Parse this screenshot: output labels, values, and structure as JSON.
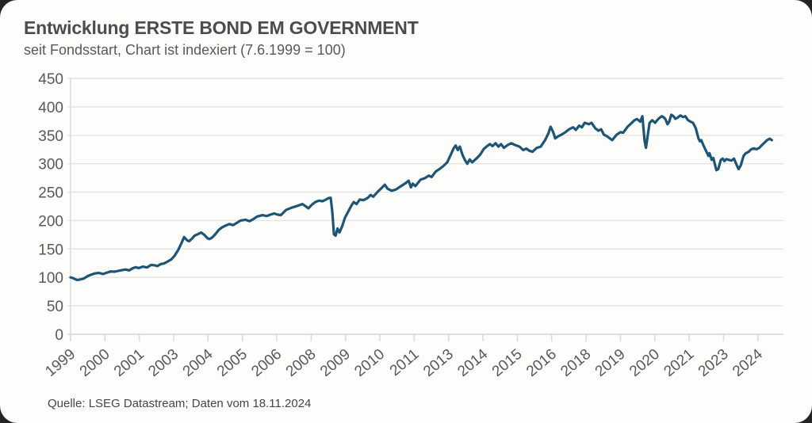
{
  "page": {
    "background": "#242424"
  },
  "card": {
    "background": "#fdfdfc"
  },
  "chart": {
    "title": "Entwicklung ERSTE BOND EM GOVERNMENT",
    "subtitle": "seit Fondsstart, Chart ist indexiert (7.6.1999 = 100)",
    "source": "Quelle: LSEG Datastream; Daten vom 18.11.2024"
  },
  "chart_data": {
    "type": "line",
    "title": "Entwicklung ERSTE BOND EM GOVERNMENT",
    "subtitle": "seit Fondsstart, Chart ist indexiert (7.6.1999 = 100)",
    "source": "Quelle: LSEG Datastream; Daten vom 18.11.2024",
    "xlabel": "",
    "ylabel": "",
    "xlim": [
      1999.42,
      2025.35
    ],
    "ylim": [
      0,
      450
    ],
    "grid": "horizontal",
    "legend": "none",
    "y_ticks": [
      0,
      50,
      100,
      150,
      200,
      250,
      300,
      350,
      400,
      450
    ],
    "x_ticks": [
      {
        "label": "1999",
        "x": 1999.42
      },
      {
        "label": "2000",
        "x": 2000.67
      },
      {
        "label": "2001",
        "x": 2001.92
      },
      {
        "label": "2003",
        "x": 2003.17
      },
      {
        "label": "2004",
        "x": 2004.42
      },
      {
        "label": "2005",
        "x": 2005.67
      },
      {
        "label": "2006",
        "x": 2006.92
      },
      {
        "label": "2008",
        "x": 2008.17
      },
      {
        "label": "2009",
        "x": 2009.42
      },
      {
        "label": "2010",
        "x": 2010.67
      },
      {
        "label": "2011",
        "x": 2011.92
      },
      {
        "label": "2013",
        "x": 2013.17
      },
      {
        "label": "2014",
        "x": 2014.42
      },
      {
        "label": "2015",
        "x": 2015.67
      },
      {
        "label": "2016",
        "x": 2016.92
      },
      {
        "label": "2018",
        "x": 2018.17
      },
      {
        "label": "2019",
        "x": 2019.42
      },
      {
        "label": "2020",
        "x": 2020.67
      },
      {
        "label": "2021",
        "x": 2021.92
      },
      {
        "label": "2023",
        "x": 2023.17
      },
      {
        "label": "2024",
        "x": 2024.42
      }
    ],
    "colors": {
      "line": "#1f5574",
      "grid": "#e4e4e4",
      "axis": "#d9d9d9",
      "tick_text": "#58585a",
      "title_text": "#4c4c4e"
    },
    "series": [
      {
        "name": "ERSTE BOND EM GOVERNMENT (indexiert, 7.6.1999 = 100)",
        "points": [
          [
            1999.42,
            100
          ],
          [
            1999.5,
            99
          ],
          [
            1999.58,
            97
          ],
          [
            1999.67,
            95.5
          ],
          [
            1999.78,
            96.5
          ],
          [
            1999.9,
            98
          ],
          [
            2000.05,
            102.5
          ],
          [
            2000.18,
            105
          ],
          [
            2000.3,
            107
          ],
          [
            2000.45,
            108
          ],
          [
            2000.6,
            106
          ],
          [
            2000.75,
            108.5
          ],
          [
            2000.88,
            110.5
          ],
          [
            2001.02,
            110
          ],
          [
            2001.15,
            111.5
          ],
          [
            2001.3,
            113
          ],
          [
            2001.42,
            114
          ],
          [
            2001.55,
            112.5
          ],
          [
            2001.68,
            116
          ],
          [
            2001.78,
            118
          ],
          [
            2001.9,
            116.5
          ],
          [
            2002.05,
            119
          ],
          [
            2002.2,
            117.5
          ],
          [
            2002.35,
            122
          ],
          [
            2002.5,
            121
          ],
          [
            2002.58,
            120
          ],
          [
            2002.7,
            123.5
          ],
          [
            2002.82,
            124.5
          ],
          [
            2002.95,
            128
          ],
          [
            2003.08,
            131.5
          ],
          [
            2003.2,
            138
          ],
          [
            2003.33,
            148
          ],
          [
            2003.45,
            160
          ],
          [
            2003.55,
            171
          ],
          [
            2003.65,
            165.5
          ],
          [
            2003.73,
            163.5
          ],
          [
            2003.83,
            168
          ],
          [
            2003.93,
            173.5
          ],
          [
            2004.05,
            176
          ],
          [
            2004.17,
            179
          ],
          [
            2004.28,
            175
          ],
          [
            2004.4,
            169
          ],
          [
            2004.47,
            167.5
          ],
          [
            2004.58,
            170.5
          ],
          [
            2004.7,
            177
          ],
          [
            2004.82,
            184
          ],
          [
            2004.93,
            188
          ],
          [
            2005.05,
            191
          ],
          [
            2005.2,
            194
          ],
          [
            2005.33,
            192
          ],
          [
            2005.47,
            196
          ],
          [
            2005.6,
            200
          ],
          [
            2005.78,
            201.5
          ],
          [
            2005.93,
            199
          ],
          [
            2006.07,
            202.5
          ],
          [
            2006.2,
            207
          ],
          [
            2006.4,
            209.5
          ],
          [
            2006.55,
            208
          ],
          [
            2006.7,
            210.5
          ],
          [
            2006.82,
            212.5
          ],
          [
            2006.95,
            210.5
          ],
          [
            2007.07,
            209.5
          ],
          [
            2007.25,
            218.5
          ],
          [
            2007.45,
            222.5
          ],
          [
            2007.65,
            225.5
          ],
          [
            2007.85,
            229
          ],
          [
            2007.95,
            226
          ],
          [
            2008.07,
            221.5
          ],
          [
            2008.2,
            228
          ],
          [
            2008.32,
            232.5
          ],
          [
            2008.45,
            235
          ],
          [
            2008.58,
            234
          ],
          [
            2008.7,
            236.5
          ],
          [
            2008.8,
            239.5
          ],
          [
            2008.88,
            240
          ],
          [
            2008.94,
            215
          ],
          [
            2009.0,
            176
          ],
          [
            2009.06,
            173.5
          ],
          [
            2009.13,
            186
          ],
          [
            2009.2,
            179
          ],
          [
            2009.3,
            190
          ],
          [
            2009.4,
            205
          ],
          [
            2009.52,
            216
          ],
          [
            2009.63,
            226
          ],
          [
            2009.72,
            232.5
          ],
          [
            2009.82,
            229
          ],
          [
            2009.94,
            237
          ],
          [
            2010.08,
            236
          ],
          [
            2010.22,
            239.5
          ],
          [
            2010.33,
            245
          ],
          [
            2010.43,
            242
          ],
          [
            2010.6,
            251
          ],
          [
            2010.75,
            258
          ],
          [
            2010.85,
            263
          ],
          [
            2010.95,
            256
          ],
          [
            2011.1,
            252.5
          ],
          [
            2011.25,
            254.5
          ],
          [
            2011.42,
            260
          ],
          [
            2011.58,
            265
          ],
          [
            2011.72,
            270
          ],
          [
            2011.8,
            258.5
          ],
          [
            2011.87,
            265
          ],
          [
            2011.96,
            260.5
          ],
          [
            2012.15,
            272
          ],
          [
            2012.3,
            274.5
          ],
          [
            2012.45,
            279
          ],
          [
            2012.55,
            276.5
          ],
          [
            2012.7,
            286
          ],
          [
            2012.85,
            291
          ],
          [
            2012.97,
            295.5
          ],
          [
            2013.12,
            302.5
          ],
          [
            2013.25,
            316
          ],
          [
            2013.35,
            327
          ],
          [
            2013.43,
            332
          ],
          [
            2013.5,
            324
          ],
          [
            2013.58,
            330
          ],
          [
            2013.68,
            315
          ],
          [
            2013.77,
            306
          ],
          [
            2013.85,
            300
          ],
          [
            2013.94,
            307.5
          ],
          [
            2014.03,
            302.5
          ],
          [
            2014.18,
            309
          ],
          [
            2014.32,
            316
          ],
          [
            2014.45,
            326
          ],
          [
            2014.56,
            330.5
          ],
          [
            2014.67,
            334.5
          ],
          [
            2014.77,
            331
          ],
          [
            2014.88,
            336
          ],
          [
            2014.98,
            330
          ],
          [
            2015.08,
            334.5
          ],
          [
            2015.18,
            328
          ],
          [
            2015.32,
            333
          ],
          [
            2015.45,
            336
          ],
          [
            2015.6,
            332.5
          ],
          [
            2015.75,
            330
          ],
          [
            2015.88,
            324
          ],
          [
            2016.0,
            326.5
          ],
          [
            2016.1,
            323
          ],
          [
            2016.22,
            321
          ],
          [
            2016.38,
            328
          ],
          [
            2016.52,
            330
          ],
          [
            2016.68,
            341.5
          ],
          [
            2016.8,
            353.5
          ],
          [
            2016.88,
            365
          ],
          [
            2016.97,
            356
          ],
          [
            2017.05,
            344.5
          ],
          [
            2017.15,
            348
          ],
          [
            2017.27,
            351
          ],
          [
            2017.42,
            355.5
          ],
          [
            2017.55,
            360.5
          ],
          [
            2017.7,
            364
          ],
          [
            2017.8,
            359.5
          ],
          [
            2017.92,
            367
          ],
          [
            2018.02,
            364
          ],
          [
            2018.12,
            372
          ],
          [
            2018.27,
            369.5
          ],
          [
            2018.37,
            372
          ],
          [
            2018.5,
            362.5
          ],
          [
            2018.62,
            358
          ],
          [
            2018.72,
            360.5
          ],
          [
            2018.82,
            351
          ],
          [
            2018.93,
            348.5
          ],
          [
            2019.05,
            344
          ],
          [
            2019.12,
            341.5
          ],
          [
            2019.28,
            351
          ],
          [
            2019.42,
            355.5
          ],
          [
            2019.52,
            354.5
          ],
          [
            2019.68,
            365
          ],
          [
            2019.78,
            369.5
          ],
          [
            2019.93,
            376.5
          ],
          [
            2020.02,
            378.5
          ],
          [
            2020.08,
            376.5
          ],
          [
            2020.14,
            374
          ],
          [
            2020.22,
            383.5
          ],
          [
            2020.3,
            340
          ],
          [
            2020.35,
            328
          ],
          [
            2020.42,
            352
          ],
          [
            2020.48,
            372
          ],
          [
            2020.58,
            376.5
          ],
          [
            2020.68,
            372
          ],
          [
            2020.8,
            379
          ],
          [
            2020.92,
            383.5
          ],
          [
            2021.0,
            381.5
          ],
          [
            2021.06,
            378
          ],
          [
            2021.13,
            369.5
          ],
          [
            2021.2,
            374.5
          ],
          [
            2021.27,
            386
          ],
          [
            2021.35,
            383.5
          ],
          [
            2021.42,
            379
          ],
          [
            2021.5,
            381
          ],
          [
            2021.6,
            385
          ],
          [
            2021.7,
            382
          ],
          [
            2021.78,
            383.5
          ],
          [
            2021.88,
            376.5
          ],
          [
            2021.97,
            374
          ],
          [
            2022.06,
            372
          ],
          [
            2022.16,
            362.5
          ],
          [
            2022.26,
            344
          ],
          [
            2022.31,
            339.5
          ],
          [
            2022.36,
            341.5
          ],
          [
            2022.46,
            330
          ],
          [
            2022.55,
            321
          ],
          [
            2022.62,
            313.8
          ],
          [
            2022.66,
            318.5
          ],
          [
            2022.74,
            306.8
          ],
          [
            2022.8,
            310
          ],
          [
            2022.91,
            288.5
          ],
          [
            2022.98,
            290.5
          ],
          [
            2023.07,
            306.8
          ],
          [
            2023.14,
            309
          ],
          [
            2023.2,
            304.5
          ],
          [
            2023.27,
            308
          ],
          [
            2023.36,
            306.8
          ],
          [
            2023.46,
            305.5
          ],
          [
            2023.55,
            309
          ],
          [
            2023.65,
            297.5
          ],
          [
            2023.72,
            290.5
          ],
          [
            2023.8,
            297.5
          ],
          [
            2023.9,
            313.8
          ],
          [
            2023.98,
            318.5
          ],
          [
            2024.08,
            320.8
          ],
          [
            2024.18,
            325.5
          ],
          [
            2024.27,
            327
          ],
          [
            2024.37,
            325.5
          ],
          [
            2024.47,
            327.8
          ],
          [
            2024.56,
            332.4
          ],
          [
            2024.66,
            337
          ],
          [
            2024.76,
            341.6
          ],
          [
            2024.85,
            344
          ],
          [
            2024.93,
            341.5
          ]
        ]
      }
    ]
  }
}
